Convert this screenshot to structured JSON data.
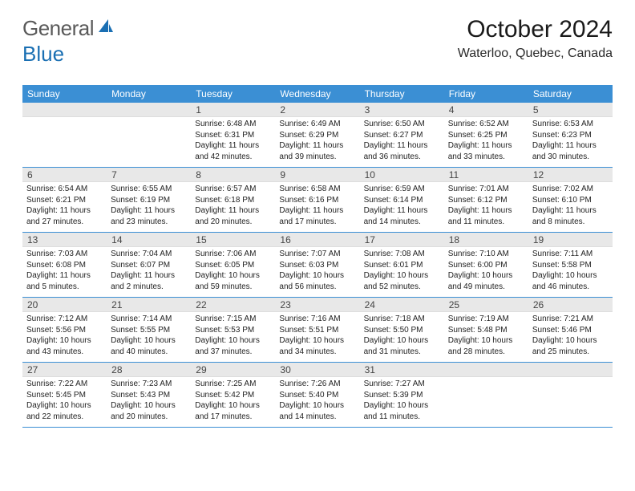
{
  "logo": {
    "text1": "General",
    "text2": "Blue"
  },
  "title": "October 2024",
  "location": "Waterloo, Quebec, Canada",
  "colors": {
    "header_bg": "#3b8fd4",
    "header_text": "#ffffff",
    "daynum_bg": "#e8e8e8",
    "week_border": "#3b8fd4",
    "logo_gray": "#5a5a5a",
    "logo_blue": "#1a6fb3"
  },
  "day_names": [
    "Sunday",
    "Monday",
    "Tuesday",
    "Wednesday",
    "Thursday",
    "Friday",
    "Saturday"
  ],
  "weeks": [
    [
      null,
      null,
      {
        "n": "1",
        "sr": "Sunrise: 6:48 AM",
        "ss": "Sunset: 6:31 PM",
        "dl": "Daylight: 11 hours and 42 minutes."
      },
      {
        "n": "2",
        "sr": "Sunrise: 6:49 AM",
        "ss": "Sunset: 6:29 PM",
        "dl": "Daylight: 11 hours and 39 minutes."
      },
      {
        "n": "3",
        "sr": "Sunrise: 6:50 AM",
        "ss": "Sunset: 6:27 PM",
        "dl": "Daylight: 11 hours and 36 minutes."
      },
      {
        "n": "4",
        "sr": "Sunrise: 6:52 AM",
        "ss": "Sunset: 6:25 PM",
        "dl": "Daylight: 11 hours and 33 minutes."
      },
      {
        "n": "5",
        "sr": "Sunrise: 6:53 AM",
        "ss": "Sunset: 6:23 PM",
        "dl": "Daylight: 11 hours and 30 minutes."
      }
    ],
    [
      {
        "n": "6",
        "sr": "Sunrise: 6:54 AM",
        "ss": "Sunset: 6:21 PM",
        "dl": "Daylight: 11 hours and 27 minutes."
      },
      {
        "n": "7",
        "sr": "Sunrise: 6:55 AM",
        "ss": "Sunset: 6:19 PM",
        "dl": "Daylight: 11 hours and 23 minutes."
      },
      {
        "n": "8",
        "sr": "Sunrise: 6:57 AM",
        "ss": "Sunset: 6:18 PM",
        "dl": "Daylight: 11 hours and 20 minutes."
      },
      {
        "n": "9",
        "sr": "Sunrise: 6:58 AM",
        "ss": "Sunset: 6:16 PM",
        "dl": "Daylight: 11 hours and 17 minutes."
      },
      {
        "n": "10",
        "sr": "Sunrise: 6:59 AM",
        "ss": "Sunset: 6:14 PM",
        "dl": "Daylight: 11 hours and 14 minutes."
      },
      {
        "n": "11",
        "sr": "Sunrise: 7:01 AM",
        "ss": "Sunset: 6:12 PM",
        "dl": "Daylight: 11 hours and 11 minutes."
      },
      {
        "n": "12",
        "sr": "Sunrise: 7:02 AM",
        "ss": "Sunset: 6:10 PM",
        "dl": "Daylight: 11 hours and 8 minutes."
      }
    ],
    [
      {
        "n": "13",
        "sr": "Sunrise: 7:03 AM",
        "ss": "Sunset: 6:08 PM",
        "dl": "Daylight: 11 hours and 5 minutes."
      },
      {
        "n": "14",
        "sr": "Sunrise: 7:04 AM",
        "ss": "Sunset: 6:07 PM",
        "dl": "Daylight: 11 hours and 2 minutes."
      },
      {
        "n": "15",
        "sr": "Sunrise: 7:06 AM",
        "ss": "Sunset: 6:05 PM",
        "dl": "Daylight: 10 hours and 59 minutes."
      },
      {
        "n": "16",
        "sr": "Sunrise: 7:07 AM",
        "ss": "Sunset: 6:03 PM",
        "dl": "Daylight: 10 hours and 56 minutes."
      },
      {
        "n": "17",
        "sr": "Sunrise: 7:08 AM",
        "ss": "Sunset: 6:01 PM",
        "dl": "Daylight: 10 hours and 52 minutes."
      },
      {
        "n": "18",
        "sr": "Sunrise: 7:10 AM",
        "ss": "Sunset: 6:00 PM",
        "dl": "Daylight: 10 hours and 49 minutes."
      },
      {
        "n": "19",
        "sr": "Sunrise: 7:11 AM",
        "ss": "Sunset: 5:58 PM",
        "dl": "Daylight: 10 hours and 46 minutes."
      }
    ],
    [
      {
        "n": "20",
        "sr": "Sunrise: 7:12 AM",
        "ss": "Sunset: 5:56 PM",
        "dl": "Daylight: 10 hours and 43 minutes."
      },
      {
        "n": "21",
        "sr": "Sunrise: 7:14 AM",
        "ss": "Sunset: 5:55 PM",
        "dl": "Daylight: 10 hours and 40 minutes."
      },
      {
        "n": "22",
        "sr": "Sunrise: 7:15 AM",
        "ss": "Sunset: 5:53 PM",
        "dl": "Daylight: 10 hours and 37 minutes."
      },
      {
        "n": "23",
        "sr": "Sunrise: 7:16 AM",
        "ss": "Sunset: 5:51 PM",
        "dl": "Daylight: 10 hours and 34 minutes."
      },
      {
        "n": "24",
        "sr": "Sunrise: 7:18 AM",
        "ss": "Sunset: 5:50 PM",
        "dl": "Daylight: 10 hours and 31 minutes."
      },
      {
        "n": "25",
        "sr": "Sunrise: 7:19 AM",
        "ss": "Sunset: 5:48 PM",
        "dl": "Daylight: 10 hours and 28 minutes."
      },
      {
        "n": "26",
        "sr": "Sunrise: 7:21 AM",
        "ss": "Sunset: 5:46 PM",
        "dl": "Daylight: 10 hours and 25 minutes."
      }
    ],
    [
      {
        "n": "27",
        "sr": "Sunrise: 7:22 AM",
        "ss": "Sunset: 5:45 PM",
        "dl": "Daylight: 10 hours and 22 minutes."
      },
      {
        "n": "28",
        "sr": "Sunrise: 7:23 AM",
        "ss": "Sunset: 5:43 PM",
        "dl": "Daylight: 10 hours and 20 minutes."
      },
      {
        "n": "29",
        "sr": "Sunrise: 7:25 AM",
        "ss": "Sunset: 5:42 PM",
        "dl": "Daylight: 10 hours and 17 minutes."
      },
      {
        "n": "30",
        "sr": "Sunrise: 7:26 AM",
        "ss": "Sunset: 5:40 PM",
        "dl": "Daylight: 10 hours and 14 minutes."
      },
      {
        "n": "31",
        "sr": "Sunrise: 7:27 AM",
        "ss": "Sunset: 5:39 PM",
        "dl": "Daylight: 10 hours and 11 minutes."
      },
      null,
      null
    ]
  ]
}
